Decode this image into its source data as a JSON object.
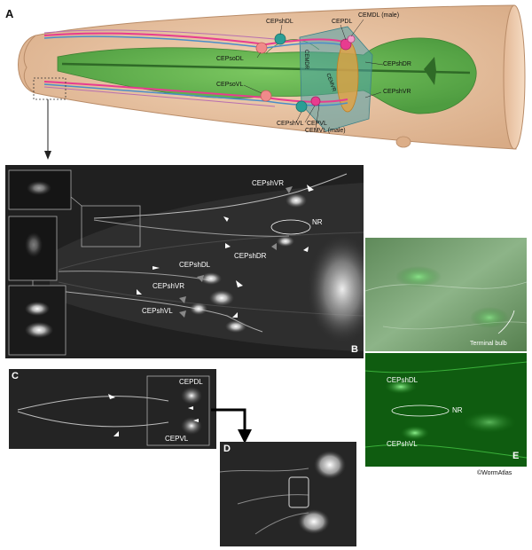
{
  "panel_a": {
    "letter": "A",
    "labels": {
      "cepshdl": "CEPshDL",
      "cepdl": "CEPDL",
      "cemdl": "CEMDL (male)",
      "cepsodl": "CEPsoDL",
      "cemdr": "CEMDR",
      "cepshdr": "CEPshDR",
      "cepsovl": "CEPsoVL",
      "cemvr": "CEMVR",
      "cepshvr": "CEPshVR",
      "cepshvl": "CEPshVL",
      "cepvl": "CEPVL",
      "cemvl": "CEMVL (male)"
    }
  },
  "panel_b": {
    "letter": "B",
    "labels": {
      "cepshvr_top": "CEPshVR",
      "nr": "NR",
      "cepshdr": "CEPshDR",
      "cepshdl": "CEPshDL",
      "cepshvr": "CEPshVR",
      "cepshvl": "CEPshVL"
    }
  },
  "panel_c": {
    "letter": "C",
    "labels": {
      "cepdl": "CEPDL",
      "cepvl": "CEPVL"
    }
  },
  "panel_d": {
    "letter": "D"
  },
  "panel_e": {
    "letter": "E",
    "labels": {
      "terminal_bulb": "Terminal bulb",
      "cepshdl": "CEPshDL",
      "nr": "NR",
      "cepshvl": "CEPshVL"
    }
  },
  "credit": "©WormAtlas",
  "colors": {
    "body": "#e9c7a9",
    "pharynx": "#63b24f",
    "sheath": "#4f9fa8",
    "neuron": "#e83c8f",
    "socket": "#f08a8a",
    "sheath_cell": "#2b9e95"
  }
}
